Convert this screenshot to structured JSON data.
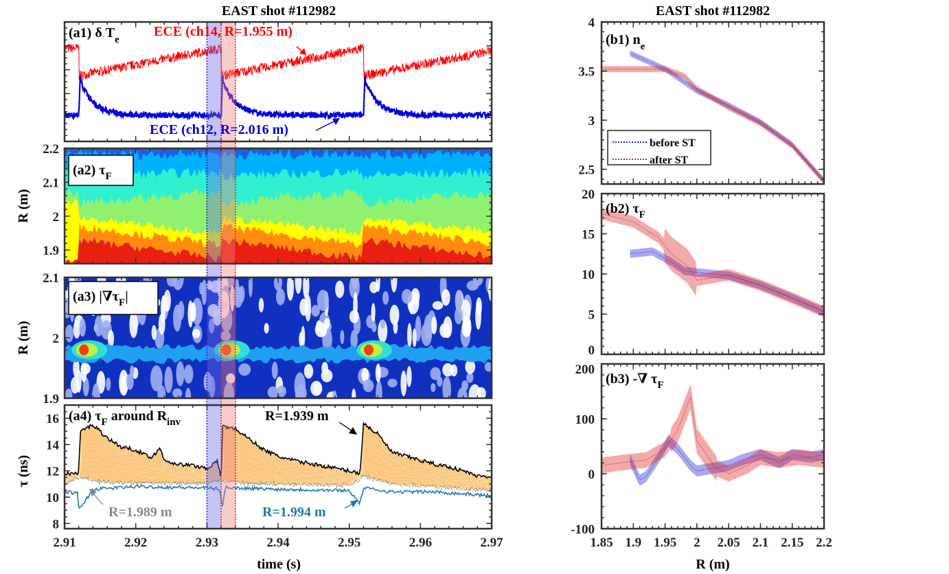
{
  "titles": {
    "left": "EAST shot #112982",
    "right": "EAST shot #112982"
  },
  "colors": {
    "before": "#2020e0",
    "after": "#e02020",
    "ece14": "#ff0000",
    "ece12": "#0000dd",
    "envelope": "#f8c070",
    "black": "#000000",
    "r1994": "#1f78b4",
    "r1989": "#888888"
  },
  "shading": {
    "before_st": [
      2.93,
      2.932
    ],
    "after_st": [
      2.932,
      2.934
    ]
  },
  "chart_data": [
    {
      "id": "a1",
      "type": "line",
      "label": {
        "main": "(a1) δ T",
        "sub": "e"
      },
      "xlim": [
        2.91,
        2.97
      ],
      "crash_times": [
        2.912,
        2.932,
        2.952
      ],
      "series": [
        {
          "name": "ECE (ch14, R=1.955 m)",
          "color": "#ff0000",
          "pre_crash_level": 0.78,
          "post_crash_level": 0.55
        },
        {
          "name": "ECE (ch12, R=2.016 m)",
          "color": "#0000dd",
          "baseline": 0.22,
          "peak": 0.55
        }
      ]
    },
    {
      "id": "a2",
      "type": "heatmap",
      "label": {
        "main": "(a2) τ",
        "sub": "F"
      },
      "xlim": [
        2.91,
        2.97
      ],
      "ylim": [
        1.86,
        2.2
      ],
      "ylabel": "R (m)",
      "yticks": [
        1.9,
        2,
        2.1,
        2.2
      ],
      "band_colors": [
        "#e82010",
        "#ff8c10",
        "#ffff00",
        "#90f070",
        "#30f0d0",
        "#00b0ff",
        "#2060e0"
      ],
      "band_tops_after_crash": [
        1.93,
        1.97,
        1.995,
        2.04,
        2.12,
        2.18
      ],
      "band_tops_before_crash": [
        1.875,
        1.915,
        1.95,
        2.07,
        2.13,
        2.185
      ]
    },
    {
      "id": "a3",
      "type": "heatmap",
      "label": {
        "main": "(a3) |∇τ",
        "sub": "F",
        "end": "|"
      },
      "xlim": [
        2.91,
        2.97
      ],
      "ylim": [
        1.9,
        2.1
      ],
      "ylabel": "R (m)",
      "yticks": [
        1.9,
        2,
        2.1
      ],
      "hot_radius": 1.98
    },
    {
      "id": "a4",
      "type": "line",
      "label": {
        "main": "(a4) τ",
        "sub": "F",
        "mid": " around R",
        "sub2": "inv"
      },
      "xlim": [
        2.91,
        2.97
      ],
      "ylim": [
        7.6,
        17
      ],
      "ylabel": "τ (ns)",
      "xlabel": "time (s)",
      "xticks": [
        2.91,
        2.92,
        2.93,
        2.94,
        2.95,
        2.96,
        2.97
      ],
      "yticks": [
        8,
        10,
        12,
        14,
        16
      ],
      "annotations": [
        "R=1.939 m",
        "R=1.989 m",
        "R=1.994 m"
      ],
      "series": [
        {
          "name": "R=1.939 m",
          "color": "#000000",
          "x": [
            2.91,
            2.912,
            2.9122,
            2.914,
            2.916,
            2.918,
            2.92,
            2.922,
            2.9235,
            2.924,
            2.926,
            2.928,
            2.93,
            2.9315,
            2.932,
            2.9322,
            2.934,
            2.936,
            2.938,
            2.94,
            2.942,
            2.944,
            2.946,
            2.948,
            2.95,
            2.9515,
            2.952,
            2.954,
            2.956,
            2.958,
            2.96,
            2.962,
            2.964,
            2.966,
            2.968,
            2.97
          ],
          "y": [
            11.8,
            11.8,
            15.0,
            15.5,
            14.5,
            13.8,
            13.6,
            13.0,
            13.7,
            12.8,
            12.5,
            12.4,
            12.2,
            12.7,
            11.3,
            15.4,
            15.2,
            14.4,
            13.6,
            13.1,
            12.8,
            12.6,
            12.4,
            12.2,
            12.0,
            11.8,
            15.6,
            14.8,
            13.4,
            13.1,
            12.8,
            12.5,
            12.3,
            12.0,
            11.6,
            11.6
          ]
        },
        {
          "name": "R=1.994 m",
          "color": "#1f78b4",
          "x": [
            2.91,
            2.9118,
            2.912,
            2.914,
            2.92,
            2.93,
            2.9318,
            2.9322,
            2.9326,
            2.934,
            2.94,
            2.95,
            2.9515,
            2.952,
            2.956,
            2.962,
            2.97
          ],
          "y": [
            10.4,
            10.3,
            9.0,
            10.6,
            10.8,
            10.7,
            10.6,
            9.2,
            10.8,
            10.7,
            10.6,
            10.5,
            9.5,
            10.7,
            10.4,
            10.4,
            10.1
          ]
        },
        {
          "name": "R=1.989 m",
          "color": "#888888",
          "x": [
            2.91,
            2.912,
            2.916,
            2.93,
            2.932,
            2.936,
            2.95,
            2.952,
            2.956,
            2.97
          ],
          "y": [
            10.9,
            11.5,
            11.1,
            11.0,
            11.3,
            11.0,
            10.9,
            11.6,
            11.0,
            10.5
          ]
        }
      ]
    },
    {
      "id": "b1",
      "type": "line",
      "label": {
        "main": "(b1) n",
        "sub": "e"
      },
      "xlim": [
        1.85,
        2.2
      ],
      "ylim": [
        2.35,
        4
      ],
      "yticks": [
        2.5,
        3,
        3.5,
        4
      ],
      "legend": {
        "position": "bottom-left",
        "entries": [
          "before ST",
          "after ST"
        ]
      },
      "series": [
        {
          "name": "before ST",
          "err": 0.03,
          "x": [
            1.895,
            1.95,
            2.0,
            2.05,
            2.1,
            2.15,
            2.2
          ],
          "y": [
            3.68,
            3.52,
            3.3,
            3.15,
            2.98,
            2.75,
            2.38
          ]
        },
        {
          "name": "after ST",
          "err": 0.03,
          "x": [
            1.85,
            1.95,
            1.98,
            2.0,
            2.05,
            2.1,
            2.15,
            2.2
          ],
          "y": [
            3.52,
            3.52,
            3.45,
            3.32,
            3.13,
            2.97,
            2.74,
            2.38
          ]
        }
      ]
    },
    {
      "id": "b2",
      "type": "line",
      "label": {
        "main": "(b2) τ",
        "sub": "F"
      },
      "xlim": [
        1.85,
        2.2
      ],
      "ylim": [
        0,
        20
      ],
      "yticks": [
        0,
        5,
        10,
        15,
        20
      ],
      "series": [
        {
          "name": "before ST",
          "err": 0.5,
          "x": [
            1.895,
            1.93,
            1.96,
            1.98,
            2.0,
            2.05,
            2.1,
            2.15,
            2.2
          ],
          "y": [
            12.5,
            12.8,
            11.5,
            10.4,
            10.2,
            9.8,
            8.6,
            7.0,
            5.3
          ]
        },
        {
          "name": "after ST",
          "err": 0.7,
          "x": [
            1.85,
            1.9,
            1.94,
            1.96,
            1.985,
            2.0,
            2.05,
            2.1,
            2.15,
            2.2
          ],
          "y": [
            17.5,
            16.5,
            14.5,
            12.5,
            11.0,
            9.2,
            9.9,
            8.6,
            7.0,
            5.3
          ]
        }
      ]
    },
    {
      "id": "b3",
      "type": "line",
      "label": {
        "main": "(b3) -∇ τ",
        "sub": "F"
      },
      "xlim": [
        1.85,
        2.2
      ],
      "ylim": [
        -100,
        200
      ],
      "yticks": [
        -100,
        0,
        100,
        200
      ],
      "xticks": [
        1.85,
        1.9,
        1.95,
        2,
        2.05,
        2.1,
        2.15,
        2.2
      ],
      "xlabel": "R (m)",
      "series": [
        {
          "name": "before ST",
          "err": 10,
          "x": [
            1.895,
            1.91,
            1.92,
            1.94,
            1.955,
            1.97,
            1.99,
            2.0,
            2.05,
            2.07,
            2.1,
            2.13,
            2.15,
            2.18,
            2.2
          ],
          "y": [
            25,
            -12,
            -5,
            30,
            60,
            45,
            15,
            5,
            15,
            25,
            35,
            20,
            35,
            30,
            35
          ]
        },
        {
          "name": "after ST",
          "err": 14,
          "x": [
            1.85,
            1.88,
            1.92,
            1.95,
            1.97,
            1.99,
            2.0,
            2.03,
            2.05,
            2.08,
            2.1,
            2.13,
            2.16,
            2.2
          ],
          "y": [
            15,
            20,
            25,
            45,
            80,
            140,
            60,
            10,
            0,
            15,
            30,
            25,
            30,
            25
          ]
        }
      ]
    }
  ],
  "tick_labels": {
    "a2_y": [
      "1.9",
      "2",
      "2.1",
      "2.2"
    ],
    "a3_y": [
      "1.9",
      "2",
      "2.1"
    ],
    "a4_y": [
      "8",
      "10",
      "12",
      "14",
      "16"
    ],
    "time_x": [
      "2.91",
      "2.92",
      "2.93",
      "2.94",
      "2.95",
      "2.96",
      "2.97"
    ],
    "b1_y": [
      "2.5",
      "3",
      "3.5",
      "4"
    ],
    "b2_y": [
      "0",
      "5",
      "10",
      "15",
      "20"
    ],
    "b3_y": [
      "-100",
      "0",
      "100",
      "200"
    ],
    "r_x": [
      "1.85",
      "1.9",
      "1.95",
      "2",
      "2.05",
      "2.1",
      "2.15",
      "2.2"
    ]
  },
  "axis_labels": {
    "a2_y": "R (m)",
    "a3_y": "R (m)",
    "a4_y": "τ (ns)",
    "time_x": "time (s)",
    "r_x": "R (m)"
  }
}
